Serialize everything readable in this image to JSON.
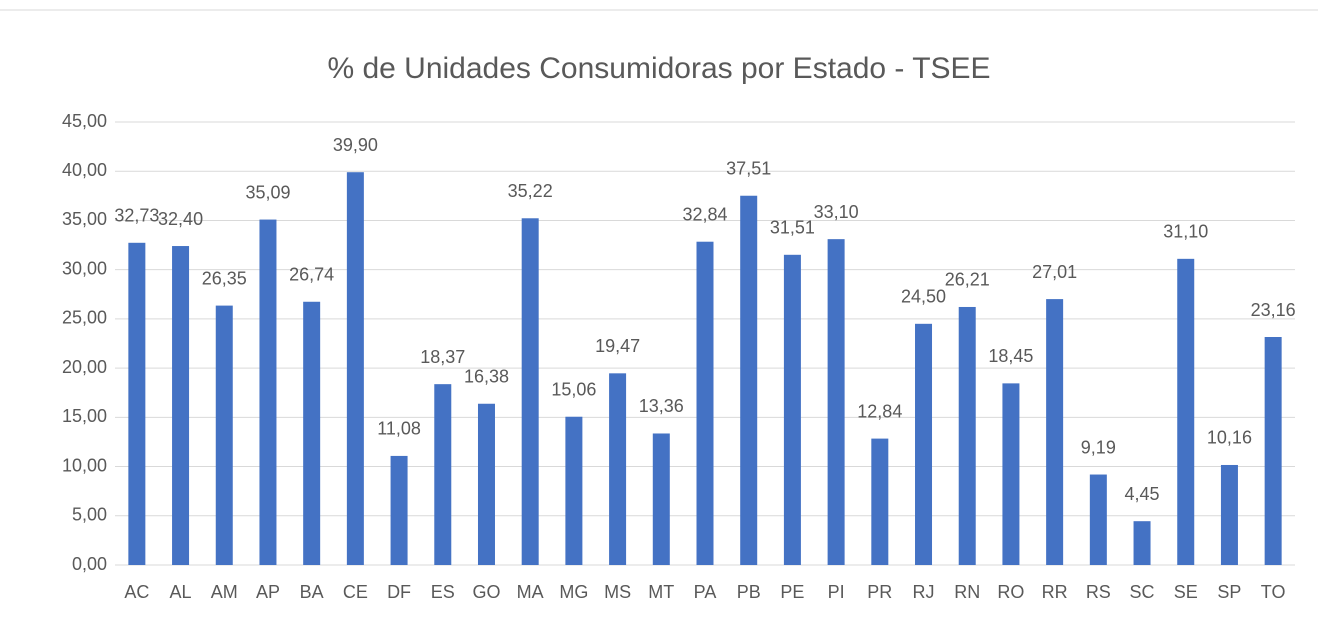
{
  "chart_data": {
    "type": "bar",
    "title": "% de Unidades Consumidoras por Estado - TSEE",
    "categories": [
      "AC",
      "AL",
      "AM",
      "AP",
      "BA",
      "CE",
      "DF",
      "ES",
      "GO",
      "MA",
      "MG",
      "MS",
      "MT",
      "PA",
      "PB",
      "PE",
      "PI",
      "PR",
      "RJ",
      "RN",
      "RO",
      "RR",
      "RS",
      "SC",
      "SE",
      "SP",
      "TO"
    ],
    "values": [
      32.73,
      32.4,
      26.35,
      35.09,
      26.74,
      39.9,
      11.08,
      18.37,
      16.38,
      35.22,
      15.06,
      19.47,
      13.36,
      32.84,
      37.51,
      31.51,
      33.1,
      12.84,
      24.5,
      26.21,
      18.45,
      27.01,
      9.19,
      4.45,
      31.1,
      10.16,
      23.16
    ],
    "value_labels": [
      "32,73",
      "32,40",
      "26,35",
      "35,09",
      "26,74",
      "39,90",
      "11,08",
      "18,37",
      "16,38",
      "35,22",
      "15,06",
      "19,47",
      "13,36",
      "32,84",
      "37,51",
      "31,51",
      "33,10",
      "12,84",
      "24,50",
      "26,21",
      "18,45",
      "27,01",
      "9,19",
      "4,45",
      "31,10",
      "10,16",
      "23,16"
    ],
    "color": "#4472c4",
    "ylim": [
      0,
      45
    ],
    "yticks": [
      {
        "value": 0,
        "label": "0,00"
      },
      {
        "value": 5,
        "label": "5,00"
      },
      {
        "value": 10,
        "label": "10,00"
      },
      {
        "value": 15,
        "label": "15,00"
      },
      {
        "value": 20,
        "label": "20,00"
      },
      {
        "value": 25,
        "label": "25,00"
      },
      {
        "value": 30,
        "label": "30,00"
      },
      {
        "value": 35,
        "label": "35,00"
      },
      {
        "value": 40,
        "label": "40,00"
      },
      {
        "value": 45,
        "label": "45,00"
      }
    ],
    "grid": true
  }
}
